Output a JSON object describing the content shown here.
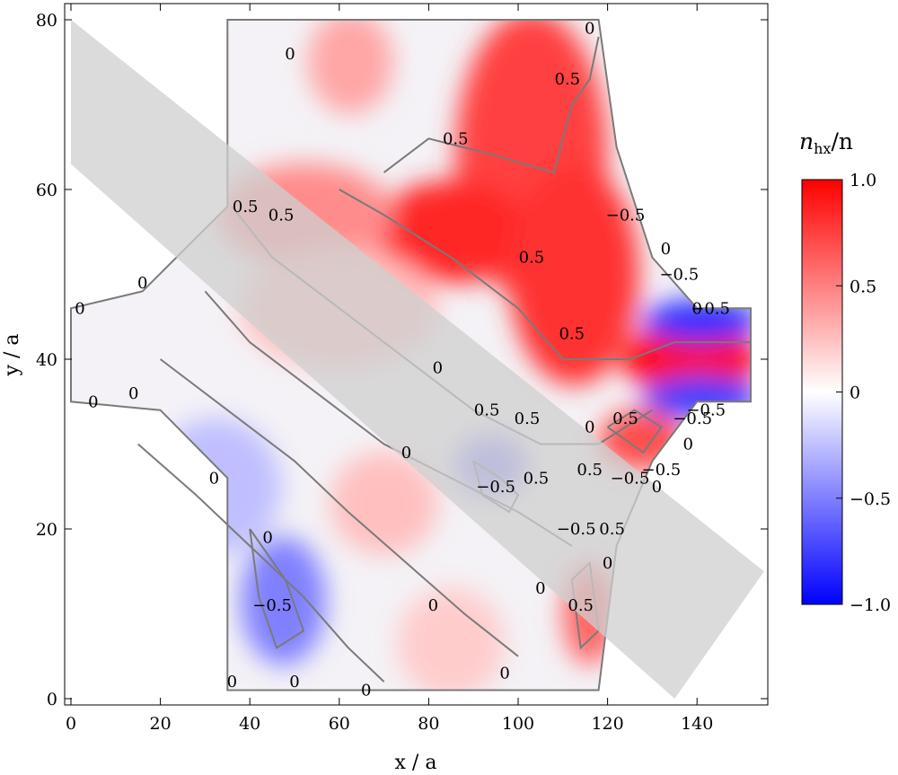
{
  "chart_data": {
    "type": "heatmap",
    "title": "",
    "xlabel": "x / a",
    "ylabel": "y / a",
    "xlim": [
      -2,
      155
    ],
    "ylim": [
      -1,
      81
    ],
    "xticks": [
      0,
      20,
      40,
      60,
      80,
      100,
      120,
      140
    ],
    "yticks": [
      0,
      20,
      40,
      60,
      80
    ],
    "colorbar": {
      "title": "n_hx/n",
      "title_main": "n",
      "title_sub": "hx",
      "title_rest": "/n",
      "range": [
        -1.0,
        1.0
      ],
      "ticks": [
        1.0,
        0.5,
        0,
        -0.5,
        -1.0
      ],
      "tick_labels": [
        "1.0",
        "0.5",
        "0",
        "−0.5",
        "−1.0"
      ],
      "colors": {
        "low": "#0000ff",
        "mid": "#ffffff",
        "high": "#ff0000"
      }
    },
    "shaded_band": {
      "description_color": "#d3d3d3",
      "upper_edge": [
        [
          0,
          80
        ],
        [
          155,
          15
        ]
      ],
      "lower_edge": [
        [
          0,
          63
        ],
        [
          135,
          0
        ]
      ]
    },
    "regions": [
      {
        "x_from": 88,
        "x_to": 118,
        "y_from": 48,
        "y_to": 80,
        "value": 0.75
      },
      {
        "x_from": 70,
        "x_to": 100,
        "y_from": 50,
        "y_to": 60,
        "value": 0.85
      },
      {
        "x_from": 100,
        "x_to": 125,
        "y_from": 38,
        "y_to": 62,
        "value": 0.8
      },
      {
        "x_from": 125,
        "x_to": 152,
        "y_from": 37,
        "y_to": 43,
        "value": 0.95
      },
      {
        "x_from": 35,
        "x_to": 70,
        "y_from": 52,
        "y_to": 62,
        "value": 0.45
      },
      {
        "x_from": 40,
        "x_to": 80,
        "y_from": 40,
        "y_to": 52,
        "value": 0.25
      },
      {
        "x_from": 55,
        "x_to": 70,
        "y_from": 70,
        "y_to": 80,
        "value": 0.35
      },
      {
        "x_from": 88,
        "x_to": 100,
        "y_from": 25,
        "y_to": 30,
        "value": -0.45
      },
      {
        "x_from": 40,
        "x_to": 55,
        "y_from": 5,
        "y_to": 18,
        "value": -0.5
      },
      {
        "x_from": 20,
        "x_to": 45,
        "y_from": 18,
        "y_to": 32,
        "value": -0.25
      },
      {
        "x_from": 60,
        "x_to": 80,
        "y_from": 18,
        "y_to": 28,
        "value": 0.25
      },
      {
        "x_from": 130,
        "x_to": 152,
        "y_from": 43,
        "y_to": 46,
        "value": -0.8
      },
      {
        "x_from": 130,
        "x_to": 152,
        "y_from": 34,
        "y_to": 37,
        "value": -0.75
      },
      {
        "x_from": 112,
        "x_to": 120,
        "y_from": 5,
        "y_to": 15,
        "value": 0.6
      },
      {
        "x_from": 120,
        "x_to": 135,
        "y_from": 28,
        "y_to": 33,
        "value": 0.7
      },
      {
        "x_from": 75,
        "x_to": 95,
        "y_from": 1,
        "y_to": 12,
        "value": 0.2
      }
    ],
    "contour_levels": [
      -0.5,
      0,
      0.5
    ],
    "contour_labels": [
      {
        "text": "0",
        "x": 116,
        "y": 79
      },
      {
        "text": "0",
        "x": 49,
        "y": 76
      },
      {
        "text": "0.5",
        "x": 111,
        "y": 73
      },
      {
        "text": "0.5",
        "x": 86,
        "y": 66
      },
      {
        "text": "0.5",
        "x": 39,
        "y": 58
      },
      {
        "text": "0.5",
        "x": 47,
        "y": 57
      },
      {
        "text": "−0.5",
        "x": 124,
        "y": 57
      },
      {
        "text": "0.5",
        "x": 103,
        "y": 52
      },
      {
        "text": "0",
        "x": 133,
        "y": 53
      },
      {
        "text": "−0.5",
        "x": 136,
        "y": 50
      },
      {
        "text": "−0.5",
        "x": 143,
        "y": 46
      },
      {
        "text": "0",
        "x": 140,
        "y": 46
      },
      {
        "text": "0",
        "x": 16,
        "y": 49
      },
      {
        "text": "0",
        "x": 2,
        "y": 46
      },
      {
        "text": "0.5",
        "x": 112,
        "y": 43
      },
      {
        "text": "0",
        "x": 82,
        "y": 39
      },
      {
        "text": "0",
        "x": 5,
        "y": 35
      },
      {
        "text": "0",
        "x": 14,
        "y": 36
      },
      {
        "text": "0.5",
        "x": 93,
        "y": 34
      },
      {
        "text": "0.5",
        "x": 102,
        "y": 33
      },
      {
        "text": "0",
        "x": 116,
        "y": 32
      },
      {
        "text": "0.5",
        "x": 124,
        "y": 33
      },
      {
        "text": "−0.5",
        "x": 139,
        "y": 33
      },
      {
        "text": "−0.5",
        "x": 142,
        "y": 34
      },
      {
        "text": "0",
        "x": 138,
        "y": 30
      },
      {
        "text": "0",
        "x": 75,
        "y": 29
      },
      {
        "text": "0.5",
        "x": 116,
        "y": 27
      },
      {
        "text": "−0.5",
        "x": 132,
        "y": 27
      },
      {
        "text": "−0.5",
        "x": 125,
        "y": 26
      },
      {
        "text": "0",
        "x": 32,
        "y": 26
      },
      {
        "text": "−0.5",
        "x": 95,
        "y": 25
      },
      {
        "text": "0.5",
        "x": 104,
        "y": 26
      },
      {
        "text": "0",
        "x": 131,
        "y": 25
      },
      {
        "text": "−0.5",
        "x": 113,
        "y": 20
      },
      {
        "text": "0.5",
        "x": 121,
        "y": 20
      },
      {
        "text": "0",
        "x": 44,
        "y": 19
      },
      {
        "text": "0",
        "x": 120,
        "y": 16
      },
      {
        "text": "0",
        "x": 105,
        "y": 13
      },
      {
        "text": "−0.5",
        "x": 45,
        "y": 11
      },
      {
        "text": "0",
        "x": 81,
        "y": 11
      },
      {
        "text": "0.5",
        "x": 114,
        "y": 11
      },
      {
        "text": "0",
        "x": 97,
        "y": 3
      },
      {
        "text": "0",
        "x": 36,
        "y": 2
      },
      {
        "text": "0",
        "x": 50,
        "y": 2
      },
      {
        "text": "0",
        "x": 66,
        "y": 1
      }
    ]
  }
}
